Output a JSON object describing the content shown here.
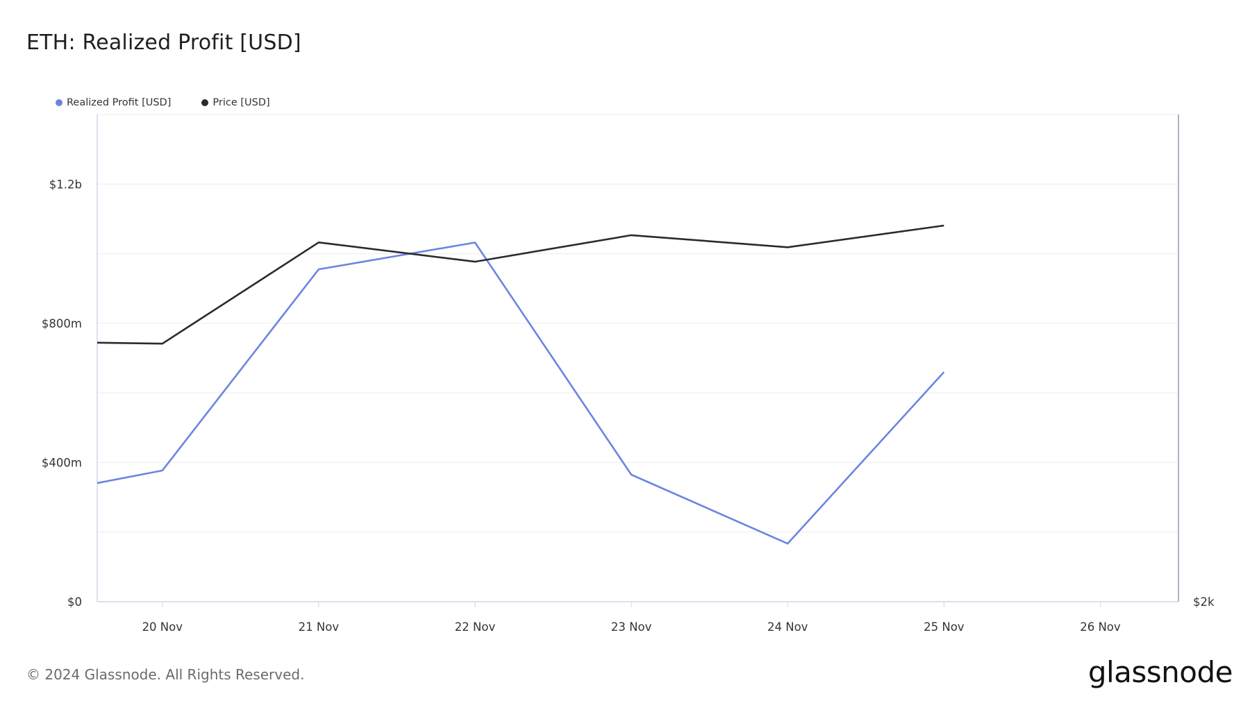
{
  "title": "ETH: Realized Profit [USD]",
  "footer": "© 2024 Glassnode. All Rights Reserved.",
  "brand": "glassnode",
  "colors": {
    "profit": "#6b85e0",
    "price": "#2b2b2b",
    "grid": "#ececec",
    "axis": "#cfd6ea"
  },
  "chart_data": {
    "type": "line",
    "title": "ETH: Realized Profit [USD]",
    "x": [
      "19 Nov",
      "20 Nov",
      "21 Nov",
      "22 Nov",
      "23 Nov",
      "24 Nov",
      "25 Nov"
    ],
    "x_ticks": [
      "20 Nov",
      "21 Nov",
      "22 Nov",
      "23 Nov",
      "24 Nov",
      "25 Nov",
      "26 Nov"
    ],
    "x_range": [
      "19 Nov 14:00",
      "26 Nov 12:00"
    ],
    "series": [
      {
        "name": "Realized Profit [USD]",
        "axis": "left",
        "color": "#6b85e0",
        "values": [
          290000000,
          377000000,
          955000000,
          1032000000,
          365000000,
          167000000,
          660000000
        ]
      },
      {
        "name": "Price [USD]",
        "axis": "right",
        "color": "#2b2b2b",
        "values": [
          3080,
          3070,
          3490,
          3410,
          3520,
          3470,
          3560
        ]
      }
    ],
    "y_left": {
      "ticks": [
        "$0",
        "$400m",
        "$800m",
        "$1.2b"
      ],
      "tick_values": [
        0,
        400000000,
        800000000,
        1200000000
      ],
      "range": [
        0,
        1400000000
      ]
    },
    "y_right": {
      "ticks": [
        "$2k"
      ],
      "tick_values": [
        2000
      ]
    },
    "grid": true,
    "legend": "top-left"
  }
}
